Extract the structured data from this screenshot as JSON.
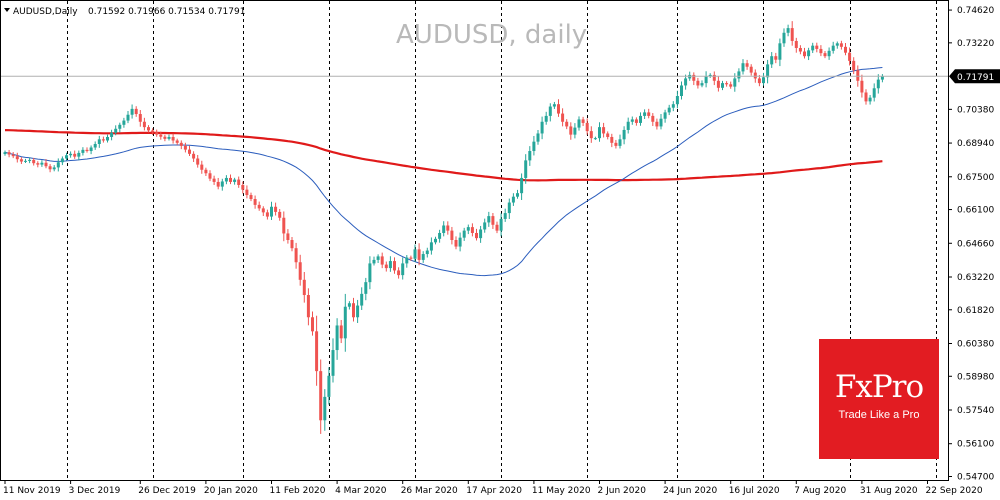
{
  "header": {
    "symbol_line": "AUDUSD,Daily",
    "ohlc": "0.71592 0.71966 0.71534 0.71791",
    "watermark": "AUDUSD, daily"
  },
  "logo": {
    "brand": "FxPro",
    "tagline": "Trade Like a Pro"
  },
  "colors": {
    "bull": "#26a69a",
    "bear": "#ef5350",
    "ma_short": "#2b5dbd",
    "ma_long": "#e01a1a",
    "grid": "#000000",
    "current_line": "#b0b0b0",
    "price_tag_bg": "#000000",
    "price_tag_text": "#ffffff"
  },
  "chart_data": {
    "type": "candlestick",
    "title": "AUDUSD, daily",
    "current_price": 0.71791,
    "current_price_label": "0.71791",
    "ylim": [
      0.5455,
      0.7505
    ],
    "y_ticks": [
      "0.74620",
      "0.73220",
      "0.71791",
      "0.70380",
      "0.68940",
      "0.67500",
      "0.66100",
      "0.64660",
      "0.63220",
      "0.61820",
      "0.60380",
      "0.58980",
      "0.57540",
      "0.56100",
      "0.54700"
    ],
    "x_labels": [
      "11 Nov 2019",
      "3 Dec 2019",
      "26 Dec 2019",
      "20 Jan 2020",
      "11 Feb 2020",
      "4 Mar 2020",
      "26 Mar 2020",
      "17 Apr 2020",
      "11 May 2020",
      "2 Jun 2020",
      "24 Jun 2020",
      "16 Jul 2020",
      "7 Aug 2020",
      "31 Aug 2020",
      "22 Sep 2020"
    ],
    "x_label_index": [
      0,
      16,
      33,
      49,
      65,
      81,
      97,
      113,
      129,
      145,
      161,
      177,
      193,
      209,
      225
    ],
    "gridlines_vertical_index": [
      15,
      36,
      58,
      79,
      100,
      121,
      142,
      164,
      185,
      206,
      227
    ],
    "grid": "vertical-dashed",
    "closes": [
      0.6855,
      0.6845,
      0.6838,
      0.6825,
      0.6815,
      0.6818,
      0.6822,
      0.6808,
      0.6802,
      0.681,
      0.6795,
      0.6782,
      0.679,
      0.6812,
      0.6828,
      0.6842,
      0.6848,
      0.6836,
      0.6852,
      0.6865,
      0.686,
      0.6875,
      0.689,
      0.691,
      0.6905,
      0.692,
      0.6938,
      0.6955,
      0.6972,
      0.699,
      0.7015,
      0.704,
      0.7018,
      0.6985,
      0.6962,
      0.6948,
      0.694,
      0.693,
      0.6921,
      0.6912,
      0.692,
      0.6905,
      0.6895,
      0.6882,
      0.6866,
      0.6848,
      0.6828,
      0.6802,
      0.678,
      0.6765,
      0.6742,
      0.6728,
      0.6708,
      0.673,
      0.6745,
      0.6728,
      0.6738,
      0.6715,
      0.6695,
      0.6672,
      0.6655,
      0.663,
      0.6615,
      0.6598,
      0.658,
      0.6622,
      0.66,
      0.6575,
      0.6508,
      0.648,
      0.6445,
      0.6385,
      0.631,
      0.6245,
      0.615,
      0.609,
      0.592,
      0.571,
      0.581,
      0.59,
      0.601,
      0.6115,
      0.606,
      0.6195,
      0.621,
      0.615,
      0.62,
      0.625,
      0.63,
      0.638,
      0.6395,
      0.641,
      0.6375,
      0.636,
      0.639,
      0.635,
      0.633,
      0.638,
      0.6405,
      0.64,
      0.644,
      0.6395,
      0.642,
      0.6435,
      0.647,
      0.6485,
      0.651,
      0.6542,
      0.652,
      0.648,
      0.6452,
      0.649,
      0.652,
      0.6535,
      0.651,
      0.6488,
      0.6525,
      0.6555,
      0.6582,
      0.6545,
      0.652,
      0.657,
      0.6595,
      0.664,
      0.6665,
      0.668,
      0.6745,
      0.682,
      0.686,
      0.69,
      0.6935,
      0.6985,
      0.701,
      0.705,
      0.706,
      0.702,
      0.6985,
      0.6965,
      0.693,
      0.696,
      0.6995,
      0.698,
      0.6945,
      0.6915,
      0.6915,
      0.6962,
      0.6935,
      0.692,
      0.6895,
      0.6882,
      0.691,
      0.695,
      0.6985,
      0.6995,
      0.698,
      0.701,
      0.7025,
      0.701,
      0.6985,
      0.6965,
      0.6998,
      0.7025,
      0.7045,
      0.706,
      0.7095,
      0.714,
      0.717,
      0.7185,
      0.716,
      0.714,
      0.715,
      0.718,
      0.7185,
      0.716,
      0.713,
      0.715,
      0.7145,
      0.7135,
      0.717,
      0.72,
      0.7235,
      0.722,
      0.7195,
      0.717,
      0.715,
      0.7175,
      0.723,
      0.7265,
      0.725,
      0.732,
      0.7365,
      0.7385,
      0.733,
      0.73,
      0.7285,
      0.7265,
      0.729,
      0.731,
      0.7296,
      0.7278,
      0.7265,
      0.7288,
      0.731,
      0.732,
      0.7305,
      0.728,
      0.7245,
      0.7205,
      0.716,
      0.711,
      0.7072,
      0.7088,
      0.7128,
      0.7165,
      0.7179
    ]
  }
}
